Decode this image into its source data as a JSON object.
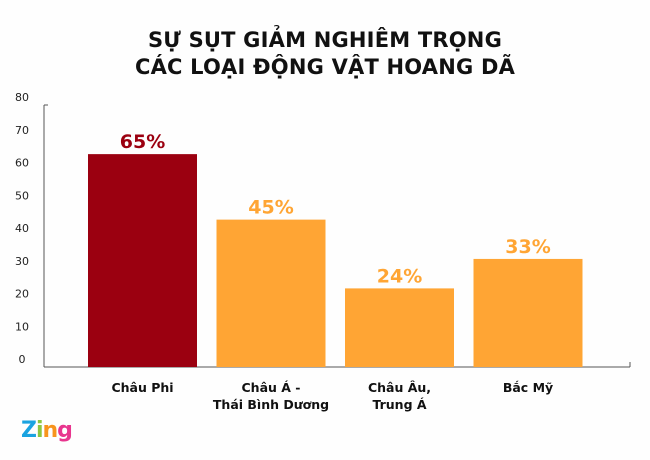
{
  "chart_data": {
    "type": "bar",
    "title": [
      "SỰ SỤT GIẢM NGHIÊM TRỌNG",
      "CÁC LOẠI ĐỘNG VẬT HOANG DÃ"
    ],
    "categories": [
      [
        "Châu Phi"
      ],
      [
        "Châu Á -",
        "Thái Bình Dương"
      ],
      [
        "Châu Âu,",
        "Trung Á"
      ],
      [
        "Bắc Mỹ"
      ]
    ],
    "values": [
      65,
      45,
      24,
      33
    ],
    "data_labels": [
      "65%",
      "45%",
      "24%",
      "33%"
    ],
    "colors": [
      "#9b0010",
      "#ffa534",
      "#ffa534",
      "#ffa534"
    ],
    "label_colors": [
      "#9b0010",
      "#ffa534",
      "#ffa534",
      "#ffa534"
    ],
    "ylim": [
      0,
      80
    ],
    "yticks": [
      0,
      10,
      20,
      30,
      40,
      50,
      60,
      70,
      80
    ],
    "grid": false
  },
  "logo": {
    "text": "Zing",
    "colors": [
      "#1aa3e0",
      "#8cc63f",
      "#f7941d",
      "#e8358e"
    ]
  }
}
